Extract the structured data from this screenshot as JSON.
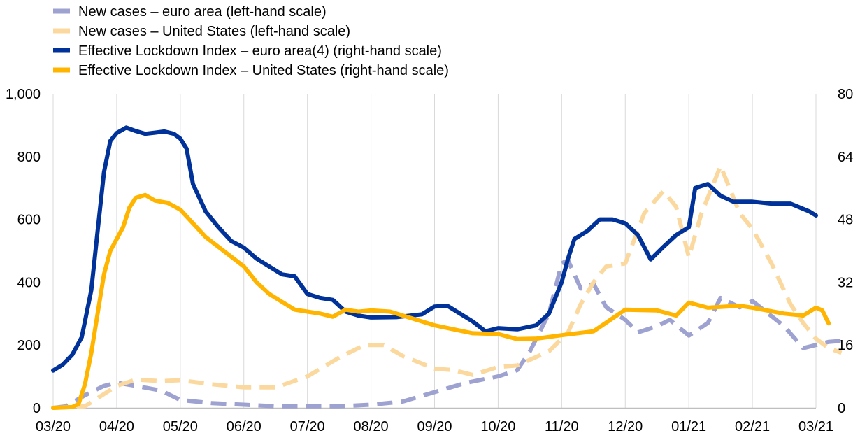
{
  "chart_data": {
    "type": "line",
    "title": "",
    "x_tick_labels": [
      "03/20",
      "04/20",
      "05/20",
      "06/20",
      "07/20",
      "08/20",
      "09/20",
      "10/20",
      "11/20",
      "12/20",
      "01/21",
      "02/21",
      "03/21"
    ],
    "left_axis": {
      "ylim": [
        0,
        1000
      ],
      "ticks": [
        0,
        200,
        400,
        600,
        800,
        1000
      ],
      "tick_labels": [
        "0",
        "200",
        "400",
        "600",
        "800",
        "1,000"
      ]
    },
    "right_axis": {
      "ylim": [
        0,
        80
      ],
      "ticks": [
        0,
        16,
        32,
        48,
        64,
        80
      ],
      "tick_labels": [
        "0",
        "16",
        "32",
        "48",
        "64",
        "80"
      ]
    },
    "grid": "vertical",
    "legend_position": "top-left",
    "series": [
      {
        "name": "New cases – euro area (left-hand scale)",
        "axis": "left",
        "color": "#9ea2d0",
        "style": "dashed",
        "points": [
          [
            0,
            0
          ],
          [
            0.2,
            5
          ],
          [
            0.5,
            40
          ],
          [
            0.8,
            70
          ],
          [
            1,
            80
          ],
          [
            1.3,
            70
          ],
          [
            1.7,
            55
          ],
          [
            2,
            25
          ],
          [
            2.5,
            15
          ],
          [
            3,
            10
          ],
          [
            3.5,
            5
          ],
          [
            4,
            5
          ],
          [
            4.5,
            5
          ],
          [
            5,
            10
          ],
          [
            5.5,
            20
          ],
          [
            6,
            50
          ],
          [
            6.5,
            80
          ],
          [
            7,
            100
          ],
          [
            7.3,
            120
          ],
          [
            7.5,
            180
          ],
          [
            7.8,
            300
          ],
          [
            8,
            460
          ],
          [
            8.1,
            470
          ],
          [
            8.3,
            380
          ],
          [
            8.5,
            395
          ],
          [
            8.7,
            320
          ],
          [
            9,
            280
          ],
          [
            9.2,
            240
          ],
          [
            9.5,
            260
          ],
          [
            9.7,
            280
          ],
          [
            10,
            230
          ],
          [
            10.3,
            270
          ],
          [
            10.5,
            350
          ],
          [
            10.8,
            320
          ],
          [
            11,
            340
          ],
          [
            11.5,
            260
          ],
          [
            11.8,
            190
          ],
          [
            12.2,
            210
          ],
          [
            12.5,
            215
          ]
        ]
      },
      {
        "name": "New cases – United States (left-hand scale)",
        "axis": "left",
        "color": "#fbd99e",
        "style": "dashed",
        "points": [
          [
            0,
            0
          ],
          [
            0.5,
            5
          ],
          [
            1,
            70
          ],
          [
            1.3,
            90
          ],
          [
            1.7,
            85
          ],
          [
            2,
            88
          ],
          [
            2.5,
            75
          ],
          [
            3,
            65
          ],
          [
            3.5,
            65
          ],
          [
            4,
            100
          ],
          [
            4.5,
            160
          ],
          [
            4.9,
            200
          ],
          [
            5.2,
            200
          ],
          [
            5.5,
            165
          ],
          [
            6,
            125
          ],
          [
            6.3,
            120
          ],
          [
            6.6,
            105
          ],
          [
            7,
            130
          ],
          [
            7.3,
            135
          ],
          [
            7.8,
            180
          ],
          [
            8.1,
            240
          ],
          [
            8.3,
            330
          ],
          [
            8.5,
            400
          ],
          [
            8.7,
            450
          ],
          [
            9,
            460
          ],
          [
            9.3,
            620
          ],
          [
            9.6,
            690
          ],
          [
            9.8,
            640
          ],
          [
            10,
            480
          ],
          [
            10.2,
            620
          ],
          [
            10.5,
            770
          ],
          [
            10.8,
            620
          ],
          [
            11,
            570
          ],
          [
            11.3,
            460
          ],
          [
            11.6,
            330
          ],
          [
            11.8,
            270
          ],
          [
            12,
            220
          ],
          [
            12.2,
            190
          ],
          [
            12.4,
            175
          ]
        ]
      },
      {
        "name": "Effective Lockdown Index – euro area(4) (right-hand scale)",
        "axis": "right",
        "color": "#003299",
        "style": "solid",
        "points": [
          [
            0,
            9.5
          ],
          [
            0.15,
            11
          ],
          [
            0.3,
            13.5
          ],
          [
            0.45,
            18
          ],
          [
            0.6,
            30
          ],
          [
            0.7,
            45
          ],
          [
            0.8,
            60
          ],
          [
            0.9,
            68
          ],
          [
            1,
            70
          ],
          [
            1.15,
            71.4
          ],
          [
            1.3,
            70.5
          ],
          [
            1.45,
            69.8
          ],
          [
            1.6,
            70.1
          ],
          [
            1.75,
            70.4
          ],
          [
            1.9,
            69.8
          ],
          [
            2,
            68.6
          ],
          [
            2.1,
            66
          ],
          [
            2.2,
            57
          ],
          [
            2.4,
            50
          ],
          [
            2.6,
            46
          ],
          [
            2.8,
            42.5
          ],
          [
            3,
            40.8
          ],
          [
            3.2,
            38
          ],
          [
            3.4,
            36
          ],
          [
            3.6,
            34
          ],
          [
            3.8,
            33.5
          ],
          [
            4,
            29
          ],
          [
            4.2,
            28
          ],
          [
            4.4,
            27.5
          ],
          [
            4.6,
            24.5
          ],
          [
            4.8,
            23.5
          ],
          [
            5,
            23
          ],
          [
            5.4,
            23.1
          ],
          [
            5.8,
            23.8
          ],
          [
            6,
            25.8
          ],
          [
            6.2,
            26
          ],
          [
            6.4,
            24
          ],
          [
            6.6,
            22
          ],
          [
            6.8,
            19.5
          ],
          [
            7,
            20.3
          ],
          [
            7.3,
            20
          ],
          [
            7.6,
            21
          ],
          [
            7.8,
            24
          ],
          [
            8,
            32
          ],
          [
            8.1,
            38
          ],
          [
            8.2,
            43
          ],
          [
            8.4,
            45
          ],
          [
            8.6,
            48
          ],
          [
            8.8,
            48
          ],
          [
            9,
            47
          ],
          [
            9.2,
            44
          ],
          [
            9.4,
            37.8
          ],
          [
            9.6,
            41
          ],
          [
            9.8,
            44
          ],
          [
            10,
            46
          ],
          [
            10.1,
            56
          ],
          [
            10.3,
            57
          ],
          [
            10.5,
            54
          ],
          [
            10.7,
            52.5
          ],
          [
            11,
            52.5
          ],
          [
            11.3,
            52
          ],
          [
            11.6,
            52
          ],
          [
            11.9,
            50
          ],
          [
            12,
            49
          ]
        ]
      },
      {
        "name": "Effective Lockdown Index – United States (right-hand scale)",
        "axis": "right",
        "color": "#ffb400",
        "style": "solid",
        "points": [
          [
            0,
            0
          ],
          [
            0.3,
            0.2
          ],
          [
            0.4,
            1
          ],
          [
            0.5,
            6
          ],
          [
            0.6,
            14
          ],
          [
            0.7,
            24
          ],
          [
            0.8,
            34
          ],
          [
            0.9,
            40
          ],
          [
            1,
            43
          ],
          [
            1.1,
            46
          ],
          [
            1.2,
            51
          ],
          [
            1.3,
            53.5
          ],
          [
            1.45,
            54.2
          ],
          [
            1.6,
            52.8
          ],
          [
            1.8,
            52.2
          ],
          [
            2,
            50.5
          ],
          [
            2.2,
            47
          ],
          [
            2.4,
            43.5
          ],
          [
            2.6,
            41
          ],
          [
            2.8,
            38.5
          ],
          [
            3,
            36
          ],
          [
            3.2,
            32
          ],
          [
            3.4,
            29
          ],
          [
            3.6,
            27
          ],
          [
            3.8,
            25
          ],
          [
            4,
            24.5
          ],
          [
            4.2,
            24
          ],
          [
            4.4,
            23.2
          ],
          [
            4.6,
            25
          ],
          [
            4.8,
            24.5
          ],
          [
            5,
            24.8
          ],
          [
            5.3,
            24.5
          ],
          [
            5.6,
            23
          ],
          [
            6,
            21
          ],
          [
            6.3,
            20
          ],
          [
            6.6,
            19
          ],
          [
            7,
            18.8
          ],
          [
            7.3,
            17.5
          ],
          [
            7.6,
            17.6
          ],
          [
            8,
            18.5
          ],
          [
            8.5,
            19.5
          ],
          [
            9,
            25
          ],
          [
            9.5,
            24.8
          ],
          [
            9.8,
            23.5
          ],
          [
            10,
            26.8
          ],
          [
            10.3,
            25.5
          ],
          [
            10.8,
            26
          ],
          [
            11,
            25.5
          ],
          [
            11.5,
            24
          ],
          [
            11.8,
            23.5
          ],
          [
            12,
            25.5
          ],
          [
            12.1,
            24.8
          ],
          [
            12.2,
            21.5
          ]
        ]
      }
    ]
  }
}
